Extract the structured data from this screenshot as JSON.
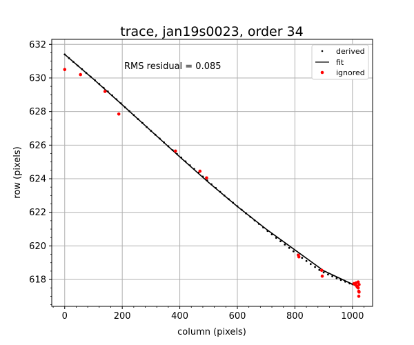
{
  "chart_data": {
    "type": "scatter",
    "title": "trace, jan19s0023, order 34",
    "xlabel": "column (pixels)",
    "ylabel": "row (pixels)",
    "xlim": [
      -45,
      1070
    ],
    "ylim": [
      616.4,
      632.3
    ],
    "xticks": [
      0,
      200,
      400,
      600,
      800,
      1000
    ],
    "yticks": [
      618,
      620,
      622,
      624,
      626,
      628,
      630,
      632
    ],
    "grid": true,
    "legend_position": "top-right",
    "annotation": "RMS residual = 0.085",
    "series": [
      {
        "name": "derived",
        "marker": "dot",
        "color": "#000000",
        "x": [
          0,
          15,
          30,
          45,
          60,
          75,
          90,
          105,
          120,
          135,
          150,
          165,
          180,
          195,
          210,
          225,
          240,
          255,
          270,
          285,
          300,
          315,
          330,
          345,
          360,
          375,
          390,
          405,
          420,
          435,
          450,
          465,
          480,
          495,
          510,
          525,
          540,
          555,
          570,
          585,
          600,
          615,
          630,
          645,
          660,
          675,
          690,
          705,
          720,
          735,
          750,
          765,
          780,
          795,
          810,
          825,
          840,
          855,
          870,
          885,
          900,
          915,
          930,
          945,
          960,
          975,
          990,
          1000
        ],
        "y": [
          631.4,
          631.18,
          630.96,
          630.74,
          630.52,
          630.3,
          630.08,
          629.86,
          629.64,
          629.42,
          629.2,
          628.96,
          628.73,
          628.49,
          628.25,
          628.02,
          627.79,
          627.55,
          627.32,
          627.08,
          626.85,
          626.62,
          626.39,
          626.16,
          625.93,
          625.7,
          625.48,
          625.26,
          625.03,
          624.8,
          624.58,
          624.36,
          624.13,
          623.9,
          623.67,
          623.45,
          623.22,
          623.0,
          622.78,
          622.57,
          622.36,
          622.15,
          621.94,
          621.73,
          621.52,
          621.31,
          621.1,
          620.89,
          620.69,
          620.48,
          620.28,
          620.08,
          619.88,
          619.68,
          619.48,
          619.29,
          619.1,
          618.92,
          618.74,
          618.57,
          618.42,
          618.3,
          618.19,
          618.08,
          617.97,
          617.87,
          617.77,
          617.72
        ]
      },
      {
        "name": "fit",
        "marker": "line",
        "color": "#000000",
        "x": [
          0,
          100,
          200,
          300,
          400,
          500,
          600,
          700,
          800,
          900,
          1000,
          1020
        ],
        "y": [
          631.4,
          629.93,
          628.4,
          626.85,
          625.3,
          623.78,
          622.35,
          621.0,
          619.76,
          618.52,
          617.72,
          617.55
        ]
      },
      {
        "name": "ignored",
        "marker": "circle",
        "color": "#ff0000",
        "x": [
          0,
          55,
          140,
          188,
          385,
          470,
          493,
          812,
          814,
          893,
          895,
          1005,
          1010,
          1013,
          1015,
          1017,
          1020,
          1020,
          1022,
          1022,
          1023,
          1023
        ],
        "y": [
          630.5,
          630.2,
          629.2,
          627.85,
          625.65,
          624.45,
          624.05,
          619.45,
          619.35,
          618.55,
          618.2,
          617.75,
          617.7,
          617.8,
          617.6,
          617.55,
          617.5,
          617.85,
          617.3,
          617.0,
          617.7,
          617.25
        ]
      }
    ]
  }
}
